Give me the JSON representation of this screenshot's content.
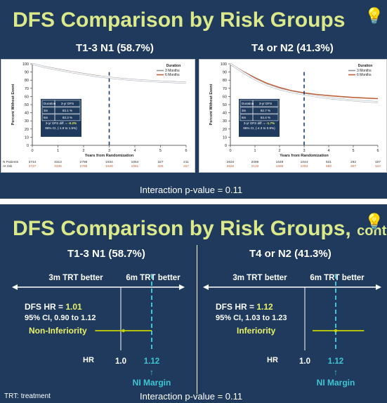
{
  "slide1": {
    "title": "DFS Comparison by Risk Groups",
    "group_left": "T1-3 N1 (58.7%)",
    "group_right": "T4 or N2 (41.3%)",
    "footer": "Interaction p-value = 0.11",
    "legend": {
      "title": "Duration",
      "items": [
        "3 Months",
        "6 Months"
      ]
    },
    "ylabel": "Percent Without Event",
    "xlabel": "Years from Randomization",
    "risk_labels": [
      "N Patients",
      "At risk"
    ],
    "panels": [
      {
        "table": {
          "header": [
            "Duration",
            "3-yr DFS"
          ],
          "rows": [
            [
              "3m",
              "83.1 %"
            ],
            [
              "6m",
              "83.3 %"
            ]
          ]
        },
        "diff_label": "3-yr DFS diff. =",
        "diff_value": "-0.2%",
        "ci": "95% CI, (-1.9 to 1.5%)",
        "at_risk_3m": [
          "3744",
          "3313",
          "2796",
          "1934",
          "1064",
          "327",
          "211"
        ],
        "at_risk_6m": [
          "3737",
          "3335",
          "2785",
          "1949",
          "1061",
          "325",
          "227"
        ]
      },
      {
        "table": {
          "header": [
            "Duration",
            "3-yr DFS"
          ],
          "rows": [
            [
              "3m",
              "62.7 %"
            ],
            [
              "6m",
              "64.4 %"
            ]
          ]
        },
        "diff_label": "3-yr DFS diff. =",
        "diff_value": "-1.7%",
        "ci": "95% CI, (-4.3 to 0.9%)",
        "at_risk_3m": [
          "2634",
          "2089",
          "1649",
          "1044",
          "531",
          "292",
          "107"
        ],
        "at_risk_6m": [
          "2632",
          "2133",
          "1665",
          "1094",
          "550",
          "307",
          "110"
        ]
      }
    ]
  },
  "slide2": {
    "title": "DFS Comparison by Risk Groups,",
    "title_suffix": "cont.",
    "group_left": "T1-3 N1 (58.7%)",
    "group_right": "T4 or N2 (41.3%)",
    "arrow_left_label": "3m TRT better",
    "arrow_right_label": "6m TRT better",
    "panels": [
      {
        "hr_label": "DFS HR =",
        "hr_value": "1.01",
        "ci": "95% CI, 0.90 to 1.12",
        "conclusion": "Non-Inferiority"
      },
      {
        "hr_label": "DFS HR =",
        "hr_value": "1.12",
        "ci": "95% CI, 1.03 to 1.23",
        "conclusion": "Inferiority"
      }
    ],
    "axis_hr": "HR",
    "axis_ref": "1.0",
    "axis_margin": "1.12",
    "margin_arrow": "↑",
    "margin_label": "NI Margin",
    "footnote": "TRT: treatment",
    "footer": "Interaction p-value = 0.11"
  },
  "colors": {
    "background": "#1f3a5c",
    "title": "#dbe98a",
    "highlight": "#e9f26a",
    "margin_line": "#3fc6d6",
    "ci_line": "#c8d400",
    "curve_3m": "#ffffff",
    "curve_6m": "#c0603a",
    "diff_value": "#e9f26a"
  },
  "chart_data": [
    {
      "type": "line",
      "title": "T1-3 N1 (58.7%)",
      "xlabel": "Years from Randomization",
      "ylabel": "Percent Without Event",
      "xlim": [
        0,
        6
      ],
      "ylim": [
        0,
        100
      ],
      "xticks": [
        0,
        1,
        2,
        3,
        4,
        5,
        6
      ],
      "yticks": [
        0,
        10,
        20,
        30,
        40,
        50,
        60,
        70,
        80,
        90,
        100
      ],
      "legend": "top-right",
      "series": [
        {
          "name": "3 Months",
          "x": [
            0,
            0.5,
            1,
            1.5,
            2,
            2.5,
            3,
            3.5,
            4,
            4.5,
            5,
            5.5,
            6
          ],
          "values": [
            100,
            96,
            93,
            90,
            87.5,
            85,
            83.1,
            81.5,
            80.3,
            79.2,
            78.3,
            77.6,
            77
          ]
        },
        {
          "name": "6 Months",
          "x": [
            0,
            0.5,
            1,
            1.5,
            2,
            2.5,
            3,
            3.5,
            4,
            4.5,
            5,
            5.5,
            6
          ],
          "values": [
            100,
            96.5,
            93.5,
            90.5,
            88,
            85.5,
            83.3,
            81.8,
            80.6,
            79.5,
            78.6,
            77.9,
            77.3
          ]
        }
      ],
      "vline_x": 3
    },
    {
      "type": "line",
      "title": "T4 or N2 (41.3%)",
      "xlabel": "Years from Randomization",
      "ylabel": "Percent Without Event",
      "xlim": [
        0,
        6
      ],
      "ylim": [
        0,
        100
      ],
      "xticks": [
        0,
        1,
        2,
        3,
        4,
        5,
        6
      ],
      "yticks": [
        0,
        10,
        20,
        30,
        40,
        50,
        60,
        70,
        80,
        90,
        100
      ],
      "legend": "top-right",
      "series": [
        {
          "name": "3 Months",
          "x": [
            0,
            0.5,
            1,
            1.5,
            2,
            2.5,
            3,
            3.5,
            4,
            4.5,
            5,
            5.5,
            6
          ],
          "values": [
            100,
            90,
            81,
            74,
            69,
            65.5,
            62.7,
            60,
            58,
            56.5,
            55.2,
            54,
            53
          ]
        },
        {
          "name": "6 Months",
          "x": [
            0,
            0.5,
            1,
            1.5,
            2,
            2.5,
            3,
            3.5,
            4,
            4.5,
            5,
            5.5,
            6
          ],
          "values": [
            100,
            91,
            83,
            76,
            71,
            67,
            64.4,
            62.5,
            61,
            59.8,
            58.8,
            58,
            57.3
          ]
        }
      ],
      "vline_x": 3
    },
    {
      "type": "scatter",
      "title": "T1-3 N1 (58.7%)",
      "xlabel": "HR",
      "reference": 1.0,
      "margin": 1.12,
      "point": 1.01,
      "ci": [
        0.9,
        1.12
      ],
      "conclusion": "Non-Inferiority"
    },
    {
      "type": "scatter",
      "title": "T4 or N2 (41.3%)",
      "xlabel": "HR",
      "reference": 1.0,
      "margin": 1.12,
      "point": 1.12,
      "ci": [
        1.03,
        1.23
      ],
      "conclusion": "Inferiority"
    }
  ]
}
